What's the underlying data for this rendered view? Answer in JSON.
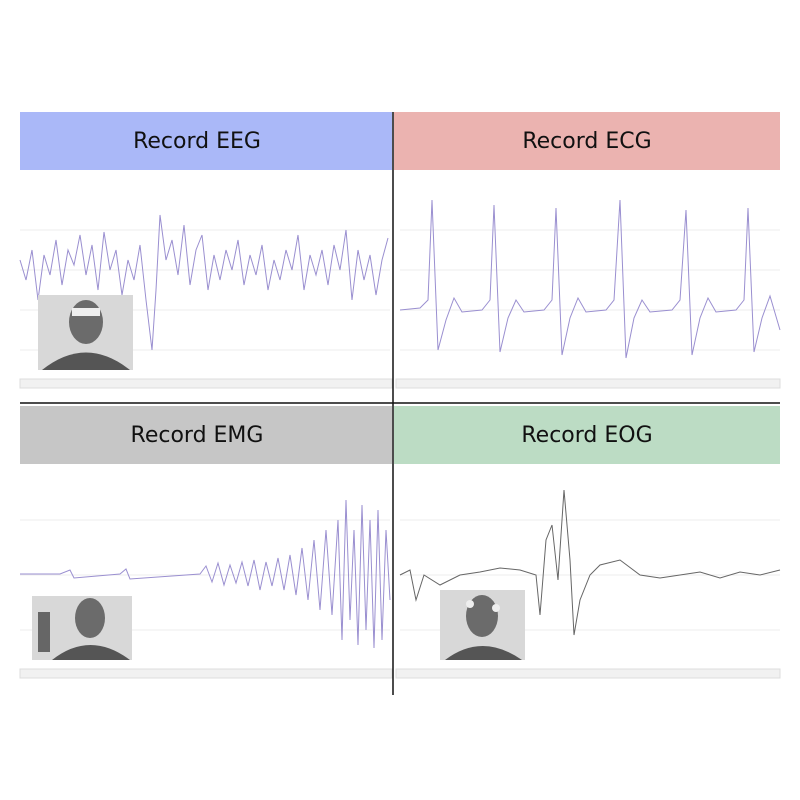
{
  "panels": [
    {
      "title": "Record EEG"
    },
    {
      "title": "Record ECG"
    },
    {
      "title": "Record EMG"
    },
    {
      "title": "Record EOG"
    }
  ]
}
